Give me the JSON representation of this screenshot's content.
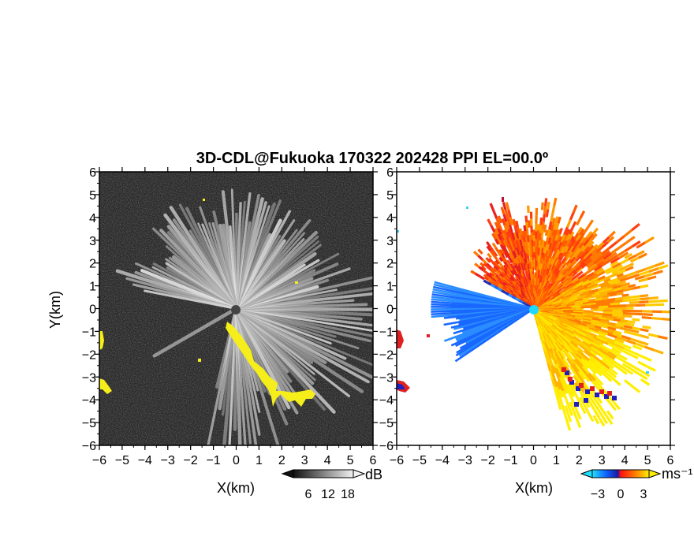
{
  "chart_data": {
    "type": "heatmap",
    "title": "3D-CDL@Fukuoka 170322 202428 PPI EL=00.0º",
    "panels": [
      {
        "name": "snr",
        "xlabel": "X(km)",
        "ylabel": "Y(km)",
        "xlim": [
          -6,
          6
        ],
        "ylim": [
          -6,
          6
        ],
        "xticks": [
          "−6",
          "−5",
          "−4",
          "−3",
          "−2",
          "−1",
          "0",
          "1",
          "2",
          "3",
          "4",
          "5",
          "6"
        ],
        "yticks": [
          "−6",
          "−5",
          "−4",
          "−3",
          "−2",
          "−1",
          "0",
          "1",
          "2",
          "3",
          "4",
          "5",
          "6"
        ],
        "background_color": "#2a2a2a",
        "highlight_color": "#f5ee1a",
        "colorbar": {
          "unit": "dB",
          "ticks": [
            "6",
            "12",
            "18"
          ],
          "range": [
            0,
            24
          ]
        }
      },
      {
        "name": "radial-velocity",
        "xlabel": "X(km)",
        "xlim": [
          -6,
          6
        ],
        "ylim": [
          -6,
          6
        ],
        "xticks": [
          "−6",
          "−5",
          "−4",
          "−3",
          "−2",
          "−1",
          "0",
          "1",
          "2",
          "3",
          "4",
          "5",
          "6"
        ],
        "yticks": [
          "−6",
          "−5",
          "−4",
          "−3",
          "−2",
          "−1",
          "0",
          "1",
          "2",
          "3",
          "4",
          "5",
          "6"
        ],
        "colorbar": {
          "unit": "ms⁻¹",
          "ticks": [
            "−3",
            "0",
            "3"
          ],
          "range": [
            -5,
            5
          ]
        }
      }
    ]
  }
}
